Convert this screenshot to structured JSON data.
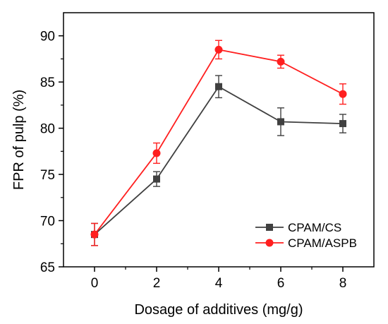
{
  "chart_data": {
    "type": "line",
    "xlabel": "Dosage of additives (mg/g)",
    "ylabel": "FPR of pulp (%)",
    "xlim": [
      -1,
      9
    ],
    "ylim": [
      65,
      92.5
    ],
    "x": [
      0,
      2,
      4,
      6,
      8
    ],
    "xticks": [
      0,
      2,
      4,
      6,
      8
    ],
    "yticks": [
      65,
      70,
      75,
      80,
      85,
      90
    ],
    "grid": false,
    "legend_position": "bottom-right",
    "series": [
      {
        "name": "CPAM/CS",
        "color": "#404040",
        "marker": "square",
        "values": [
          68.5,
          74.5,
          84.5,
          80.7,
          80.5
        ],
        "errors": [
          1.2,
          0.8,
          1.2,
          1.5,
          1.0
        ]
      },
      {
        "name": "CPAM/ASPB",
        "color": "#ff1f1f",
        "marker": "circle",
        "values": [
          68.5,
          77.3,
          88.5,
          87.2,
          83.7
        ],
        "errors": [
          1.2,
          1.1,
          1.0,
          0.7,
          1.1
        ]
      }
    ]
  }
}
